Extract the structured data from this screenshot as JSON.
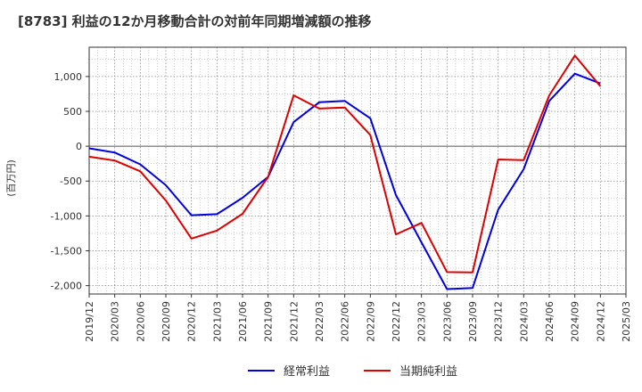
{
  "chart_data": {
    "type": "line",
    "title": "[8783]  利益の12か月移動合計の対前年同期増減額の推移",
    "ylabel": "(百万円)",
    "xlabel": "",
    "ylim": [
      -2120,
      1420
    ],
    "yticks": [
      1000,
      500,
      0,
      -500,
      -1000,
      -1500,
      -2000
    ],
    "ytick_labels": [
      "1,000",
      "500",
      "0",
      "-500",
      "-1,000",
      "-1,500",
      "-2,000"
    ],
    "categories": [
      "2019/12",
      "2020/03",
      "2020/06",
      "2020/09",
      "2020/12",
      "2021/03",
      "2021/06",
      "2021/09",
      "2021/12",
      "2022/03",
      "2022/06",
      "2022/09",
      "2022/12",
      "2023/03",
      "2023/06",
      "2023/09",
      "2023/12",
      "2024/03",
      "2024/06",
      "2024/09",
      "2024/12",
      "2025/03"
    ],
    "grid": true,
    "legend_position": "bottom",
    "series": [
      {
        "name": "経常利益",
        "color": "#0000dd",
        "values": [
          -30,
          -90,
          -260,
          -560,
          -990,
          -975,
          -740,
          -440,
          345,
          630,
          650,
          400,
          -700,
          -1380,
          -2050,
          -2035,
          -910,
          -330,
          650,
          1040,
          900,
          null
        ]
      },
      {
        "name": "当期純利益",
        "color": "#dd0000",
        "values": [
          -150,
          -205,
          -360,
          -780,
          -1325,
          -1210,
          -970,
          -440,
          730,
          540,
          555,
          160,
          -1265,
          -1100,
          -1805,
          -1810,
          -190,
          -200,
          730,
          1300,
          860,
          null
        ]
      }
    ]
  }
}
